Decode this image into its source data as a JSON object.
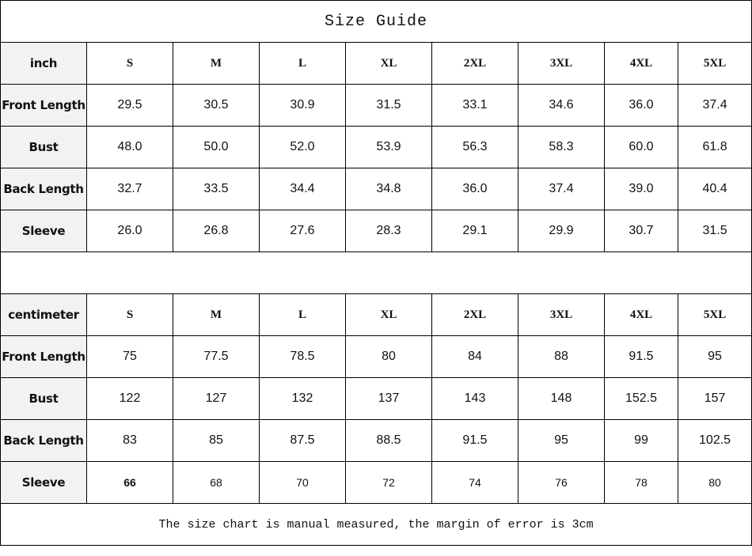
{
  "title": "Size Guide",
  "sizes": [
    "S",
    "M",
    "L",
    "XL",
    "2XL",
    "3XL",
    "4XL",
    "5XL"
  ],
  "inch": {
    "unit": "inch",
    "rows": [
      {
        "label": "Front Length",
        "values": [
          "29.5",
          "30.5",
          "30.9",
          "31.5",
          "33.1",
          "34.6",
          "36.0",
          "37.4"
        ]
      },
      {
        "label": "Bust",
        "values": [
          "48.0",
          "50.0",
          "52.0",
          "53.9",
          "56.3",
          "58.3",
          "60.0",
          "61.8"
        ]
      },
      {
        "label": "Back Length",
        "values": [
          "32.7",
          "33.5",
          "34.4",
          "34.8",
          "36.0",
          "37.4",
          "39.0",
          "40.4"
        ]
      },
      {
        "label": "Sleeve",
        "values": [
          "26.0",
          "26.8",
          "27.6",
          "28.3",
          "29.1",
          "29.9",
          "30.7",
          "31.5"
        ]
      }
    ]
  },
  "cm": {
    "unit": "centimeter",
    "rows": [
      {
        "label": "Front Length",
        "values": [
          "75",
          "77.5",
          "78.5",
          "80",
          "84",
          "88",
          "91.5",
          "95"
        ]
      },
      {
        "label": "Bust",
        "values": [
          "122",
          "127",
          "132",
          "137",
          "143",
          "148",
          "152.5",
          "157"
        ]
      },
      {
        "label": "Back Length",
        "values": [
          "83",
          "85",
          "87.5",
          "88.5",
          "91.5",
          "95",
          "99",
          "102.5"
        ]
      },
      {
        "label": "Sleeve",
        "values": [
          "66",
          "68",
          "70",
          "72",
          "74",
          "76",
          "78",
          "80"
        ]
      }
    ]
  },
  "note": "The size chart is manual measured, the margin of error is 3cm"
}
